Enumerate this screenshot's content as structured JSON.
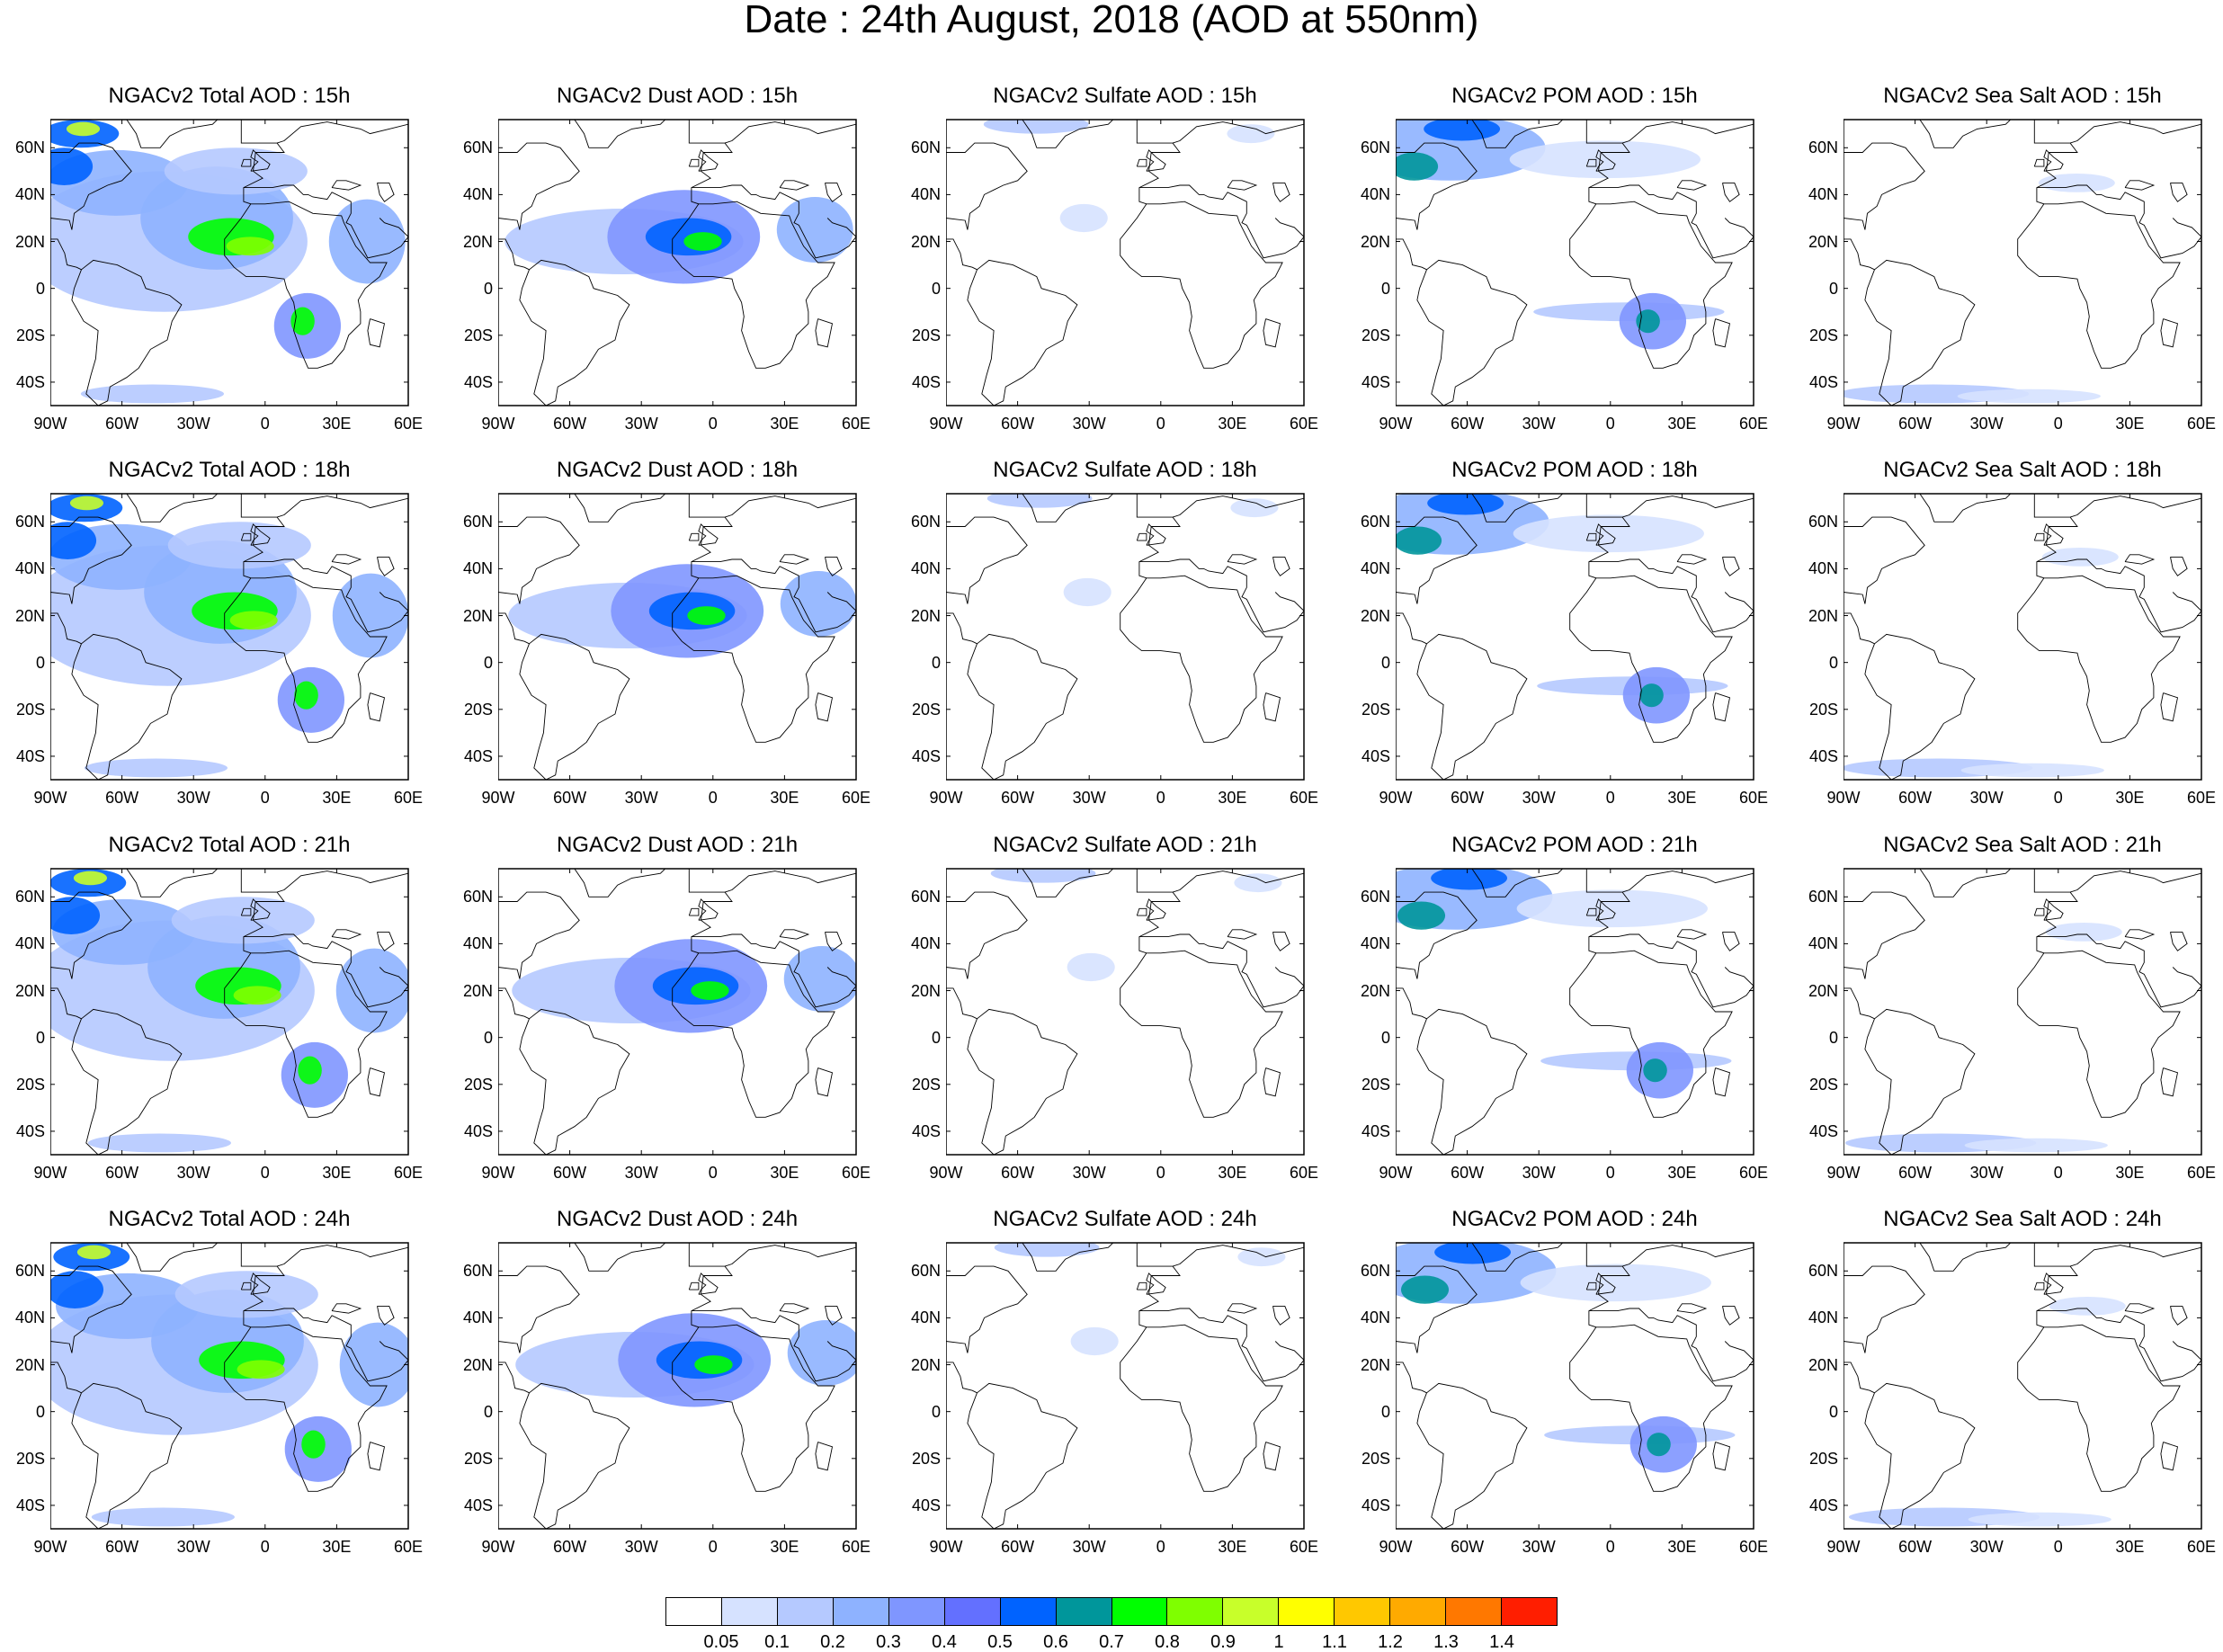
{
  "figure_title": "Date : 24th August, 2018 (AOD at 550nm)",
  "panel_rows": [
    [
      "NGACv2 Total AOD : 15h",
      "NGACv2 Dust AOD : 15h",
      "NGACv2 Sulfate AOD : 15h",
      "NGACv2 POM AOD : 15h",
      "NGACv2 Sea Salt AOD : 15h"
    ],
    [
      "NGACv2 Total AOD : 18h",
      "NGACv2 Dust AOD : 18h",
      "NGACv2 Sulfate AOD : 18h",
      "NGACv2 POM AOD : 18h",
      "NGACv2 Sea Salt AOD : 18h"
    ],
    [
      "NGACv2 Total AOD : 21h",
      "NGACv2 Dust AOD : 21h",
      "NGACv2 Sulfate AOD : 21h",
      "NGACv2 POM AOD : 21h",
      "NGACv2 Sea Salt AOD : 21h"
    ],
    [
      "NGACv2 Total AOD : 24h",
      "NGACv2 Dust AOD : 24h",
      "NGACv2 Sulfate AOD : 24h",
      "NGACv2 POM AOD : 24h",
      "NGACv2 Sea Salt  AOD : 24h"
    ]
  ],
  "lat_ticks": [
    "60N",
    "40N",
    "20N",
    "0",
    "20S",
    "40S"
  ],
  "lon_ticks": [
    "90W",
    "60W",
    "30W",
    "0",
    "30E",
    "60E"
  ],
  "colorbar": {
    "labels": [
      "0.05",
      "0.1",
      "0.2",
      "0.3",
      "0.4",
      "0.5",
      "0.6",
      "0.7",
      "0.8",
      "0.9",
      "1",
      "1.1",
      "1.2",
      "1.3",
      "1.4"
    ],
    "colors": [
      "#ffffff",
      "#d6e2ff",
      "#b5c9ff",
      "#8eb2ff",
      "#7f96ff",
      "#6370ff",
      "#0063ff",
      "#00969b",
      "#00ff00",
      "#7fff00",
      "#c8ff2a",
      "#ffff00",
      "#ffc800",
      "#ffaa00",
      "#ff7800",
      "#ff1e00"
    ]
  }
}
